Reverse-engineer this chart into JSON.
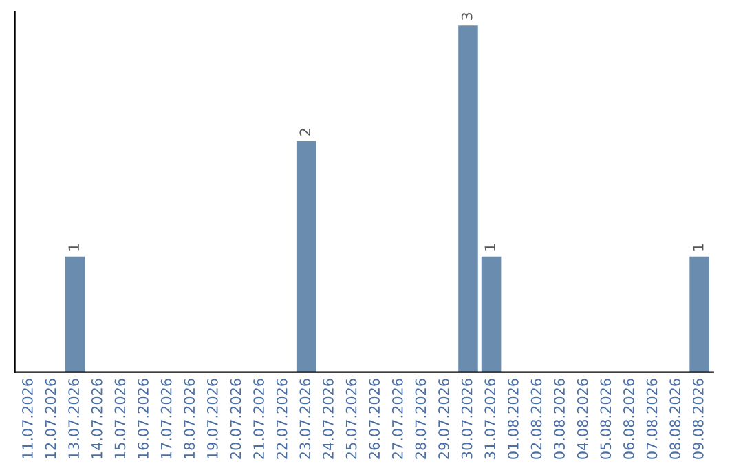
{
  "chart_data": {
    "type": "bar",
    "categories": [
      "11.07.2026",
      "12.07.2026",
      "13.07.2026",
      "14.07.2026",
      "15.07.2026",
      "16.07.2026",
      "17.07.2026",
      "18.07.2026",
      "19.07.2026",
      "20.07.2026",
      "21.07.2026",
      "22.07.2026",
      "23.07.2026",
      "24.07.2026",
      "25.07.2026",
      "26.07.2026",
      "27.07.2026",
      "28.07.2026",
      "29.07.2026",
      "30.07.2026",
      "31.07.2026",
      "01.08.2026",
      "02.08.2026",
      "03.08.2026",
      "04.08.2026",
      "05.08.2026",
      "06.08.2026",
      "07.08.2026",
      "08.08.2026",
      "09.08.2026"
    ],
    "values": [
      0,
      0,
      1,
      0,
      0,
      0,
      0,
      0,
      0,
      0,
      0,
      0,
      2,
      0,
      0,
      0,
      0,
      0,
      0,
      3,
      1,
      0,
      0,
      0,
      0,
      0,
      0,
      0,
      0,
      1
    ],
    "color": "#6a8caf",
    "value_labels": [
      null,
      null,
      "1",
      null,
      null,
      null,
      null,
      null,
      null,
      null,
      null,
      null,
      "2",
      null,
      null,
      null,
      null,
      null,
      null,
      "3",
      "1",
      null,
      null,
      null,
      null,
      null,
      null,
      null,
      null,
      "1"
    ],
    "grid": false,
    "legend": false
  }
}
